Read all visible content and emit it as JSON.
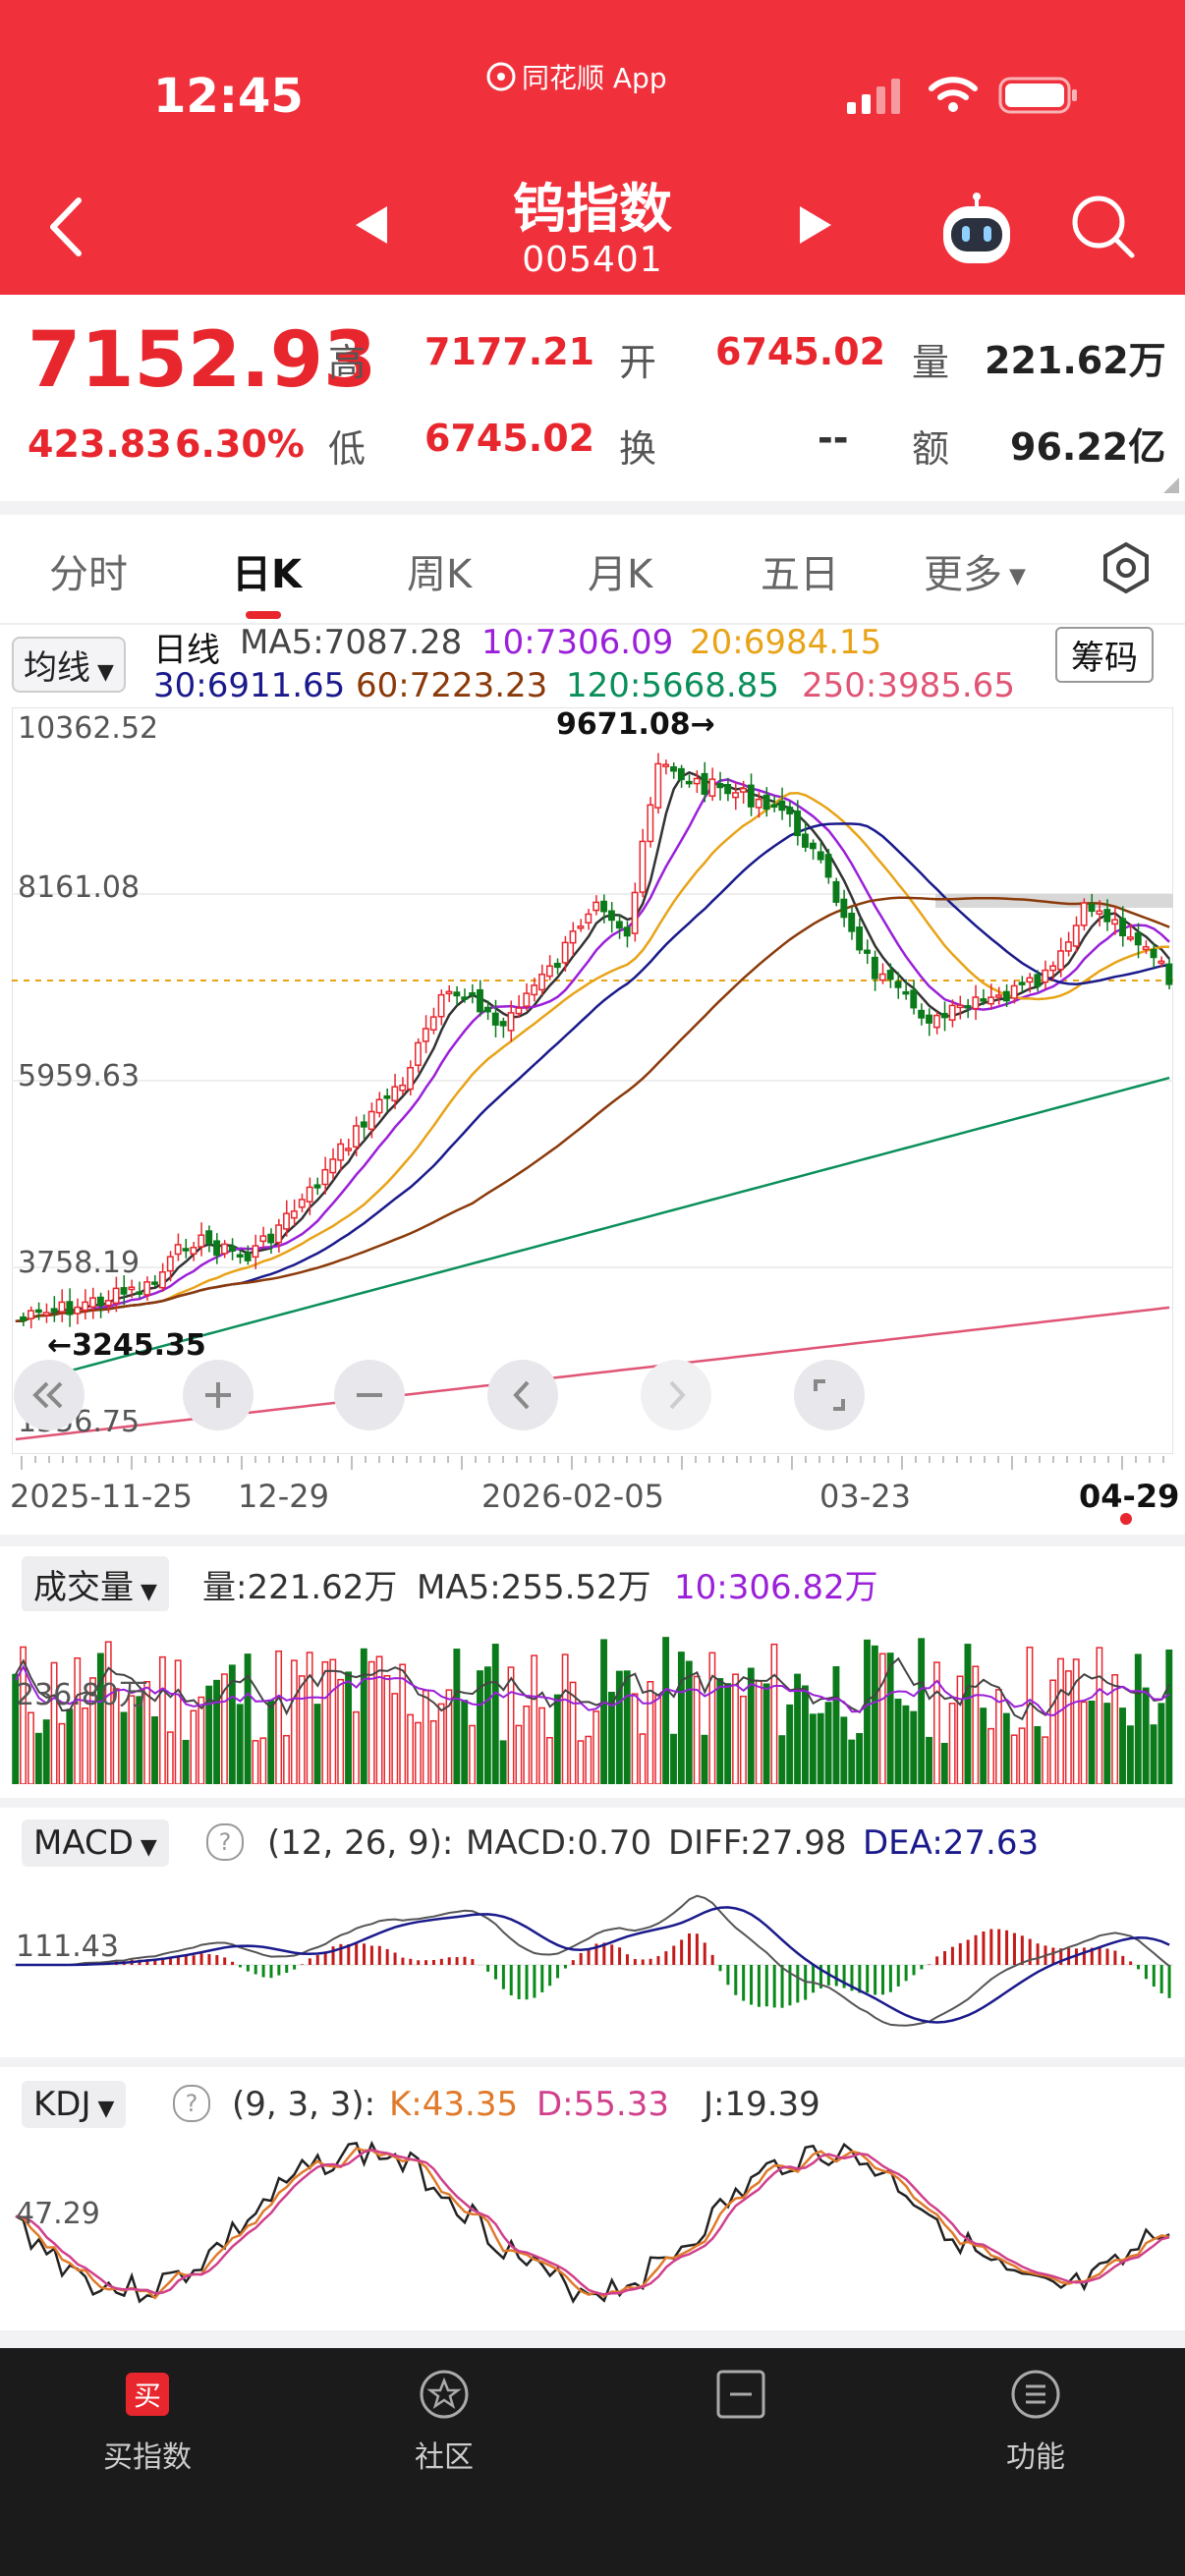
{
  "status_bar": {
    "time": "12:45",
    "app_name": "同花顺 App"
  },
  "header": {
    "title": "钨指数",
    "code": "005401"
  },
  "quote": {
    "price": "7152.93",
    "change": "423.83",
    "change_pct": "6.30%",
    "high_label": "高",
    "high": "7177.21",
    "low_label": "低",
    "low": "6745.02",
    "open_label": "开",
    "open": "6745.02",
    "turnover_label": "换",
    "turnover": "--",
    "volume_label": "量",
    "volume": "221.62万",
    "amount_label": "额",
    "amount": "96.22亿"
  },
  "tabs": [
    {
      "label": "分时",
      "active": false
    },
    {
      "label": "日K",
      "active": true
    },
    {
      "label": "周K",
      "active": false
    },
    {
      "label": "月K",
      "active": false
    },
    {
      "label": "五日",
      "active": false
    },
    {
      "label": "更多",
      "active": false
    }
  ],
  "ma_legend": {
    "selector": "均线",
    "period": "日线",
    "ma5": "MA5:7087.28",
    "ma10": "10:7306.09",
    "ma20": "20:6984.15",
    "ma30": "30:6911.65",
    "ma60": "60:7223.23",
    "ma120": "120:5668.85",
    "ma250": "250:3985.65",
    "chip_button": "筹码",
    "colors": {
      "ma5": "#333333",
      "ma10": "#9b20d9",
      "ma20": "#e8a317",
      "ma30": "#1a1a8c",
      "ma60": "#8b3a0a",
      "ma120": "#0a8f5a",
      "ma250": "#e05575"
    }
  },
  "main_chart": {
    "y_labels": [
      "10362.52",
      "8161.08",
      "5959.63",
      "3758.19",
      "1556.75"
    ],
    "max_marker": "9671.08→",
    "min_marker": "←3245.35",
    "dates": [
      "2025-11-25",
      "12-29",
      "2026-02-05",
      "03-23",
      "04-29"
    ]
  },
  "volume_panel": {
    "selector": "成交量",
    "vol": "量:221.62万",
    "ma5": "MA5:255.52万",
    "ma10": "10:306.82万",
    "axis_label": "236.80万"
  },
  "macd_panel": {
    "selector": "MACD",
    "params": "(12, 26, 9):",
    "macd": "MACD:0.70",
    "diff": "DIFF:27.98",
    "dea": "DEA:27.63",
    "axis_label": "111.43"
  },
  "kdj_panel": {
    "selector": "KDJ",
    "params": "(9, 3, 3):",
    "k": "K:43.35",
    "d": "D:55.33",
    "j": "J:19.39",
    "axis_label": "47.29"
  },
  "bottom_nav": [
    {
      "label": "买指数",
      "icon": "buy-icon"
    },
    {
      "label": "社区",
      "icon": "community-icon"
    },
    {
      "label": "",
      "icon": "minus-box-icon"
    },
    {
      "label": "功能",
      "icon": "menu-icon"
    }
  ]
}
